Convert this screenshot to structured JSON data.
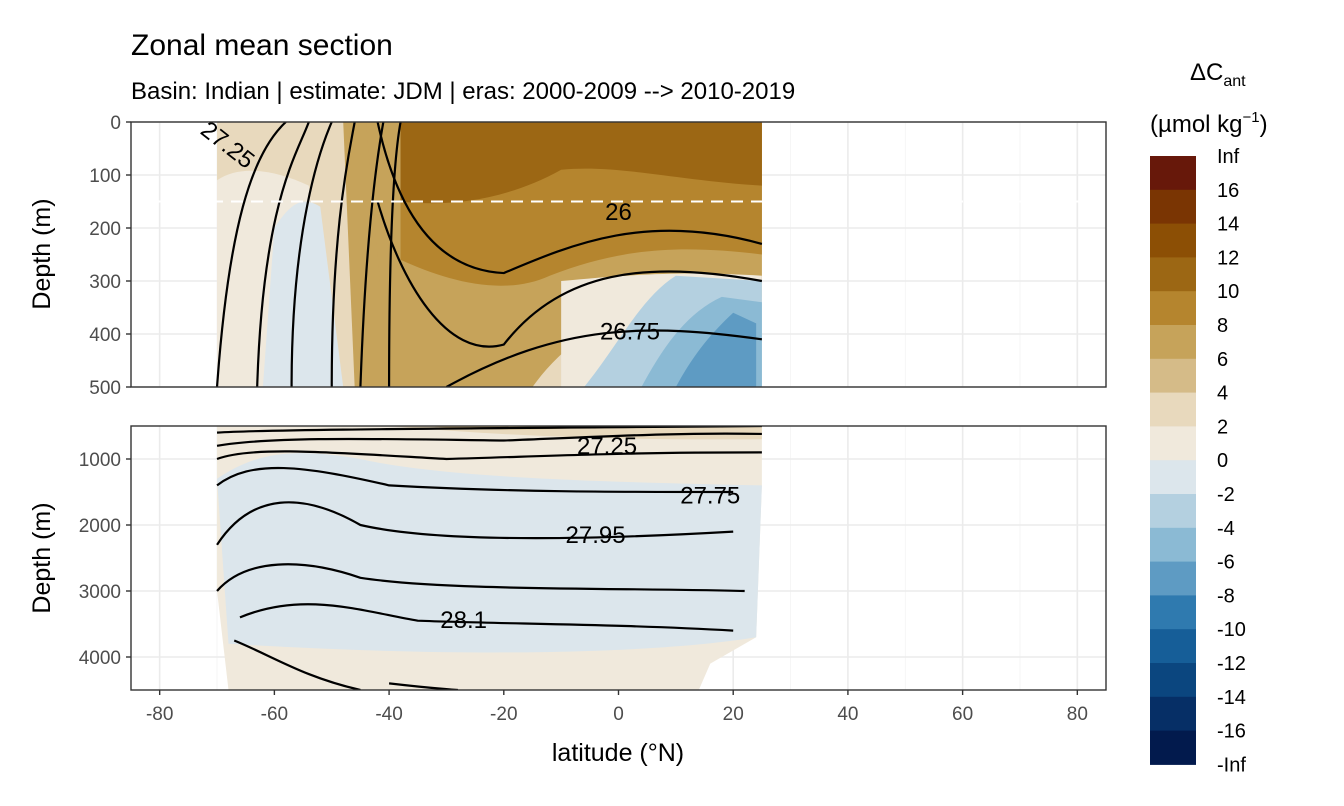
{
  "chart_data": {
    "type": "heatmap",
    "title": "Zonal mean section",
    "subtitle": "Basin: Indian | estimate: JDM  | eras: 2000-2009 --> 2010-2019",
    "xlabel": "latitude (°N)",
    "ylabel": "Depth (m)",
    "xlim": [
      -85,
      85
    ],
    "x_ticks": [
      -80,
      -60,
      -40,
      -20,
      0,
      20,
      40,
      60,
      80
    ],
    "panels": [
      {
        "name": "upper",
        "ylim": [
          0,
          500
        ],
        "y_ticks": [
          0,
          100,
          200,
          300,
          400,
          500
        ],
        "reference_depth_dashed": 150
      },
      {
        "name": "lower",
        "ylim": [
          500,
          4500
        ],
        "y_ticks": [
          1000,
          2000,
          3000,
          4000
        ]
      }
    ],
    "data_lat_range": [
      -70,
      25
    ],
    "legend": {
      "title": "ΔC",
      "title_subscript": "ant",
      "units_prefix": "(µmol kg",
      "units_superscript": "−1",
      "units_suffix": ")",
      "position": "right",
      "levels": [
        "Inf",
        "16",
        "14",
        "12",
        "10",
        "8",
        "6",
        "4",
        "2",
        "0",
        "-2",
        "-4",
        "-6",
        "-8",
        "-10",
        "-12",
        "-14",
        "-16",
        "-Inf"
      ],
      "colors": [
        "#67180a",
        "#7a3503",
        "#8c4f05",
        "#9c6714",
        "#b5852e",
        "#c6a35a",
        "#d5bb88",
        "#e8d9bd",
        "#f0e9dc",
        "#dce6ec",
        "#b4d0e0",
        "#8bbad4",
        "#5e9bc3",
        "#2f7aaf",
        "#165e98",
        "#0b467f",
        "#062f66",
        "#021a4d"
      ]
    },
    "field_upper": [
      {
        "band": "-2",
        "lat": [
          -10,
          25
        ],
        "depth": [
          280,
          500
        ]
      },
      {
        "band": "-4",
        "lat": [
          8,
          25
        ],
        "depth": [
          330,
          500
        ]
      },
      {
        "band": "-6",
        "lat": [
          14,
          22
        ],
        "depth": [
          380,
          500
        ]
      },
      {
        "band": "12",
        "lat": [
          -38,
          25
        ],
        "depth": [
          0,
          130
        ]
      },
      {
        "band": "10",
        "lat": [
          -38,
          -15
        ],
        "depth": [
          130,
          280
        ]
      }
    ],
    "field_lower": [
      {
        "band": "2",
        "lat": [
          -70,
          25
        ],
        "depth": [
          500,
          1200
        ]
      },
      {
        "band": "0",
        "lat": [
          -70,
          25
        ],
        "depth": [
          1200,
          4300
        ]
      },
      {
        "band": "2",
        "lat": [
          -68,
          0
        ],
        "depth": [
          3800,
          4500
        ]
      }
    ],
    "isopycnals": [
      {
        "label": "26",
        "label_at": [
          0,
          170
        ]
      },
      {
        "label": "26.75",
        "label_at": [
          2,
          395
        ]
      },
      {
        "label": "27.25",
        "label_at": [
          -2,
          800
        ]
      },
      {
        "label": "27.75",
        "label_at": [
          16,
          1550
        ]
      },
      {
        "label": "27.95",
        "label_at": [
          -4,
          2150
        ]
      },
      {
        "label": "28.1",
        "label_at": [
          -27,
          3440
        ]
      },
      {
        "label": "27.25",
        "label_at": [
          -69,
          40
        ],
        "rotated": true
      }
    ]
  }
}
